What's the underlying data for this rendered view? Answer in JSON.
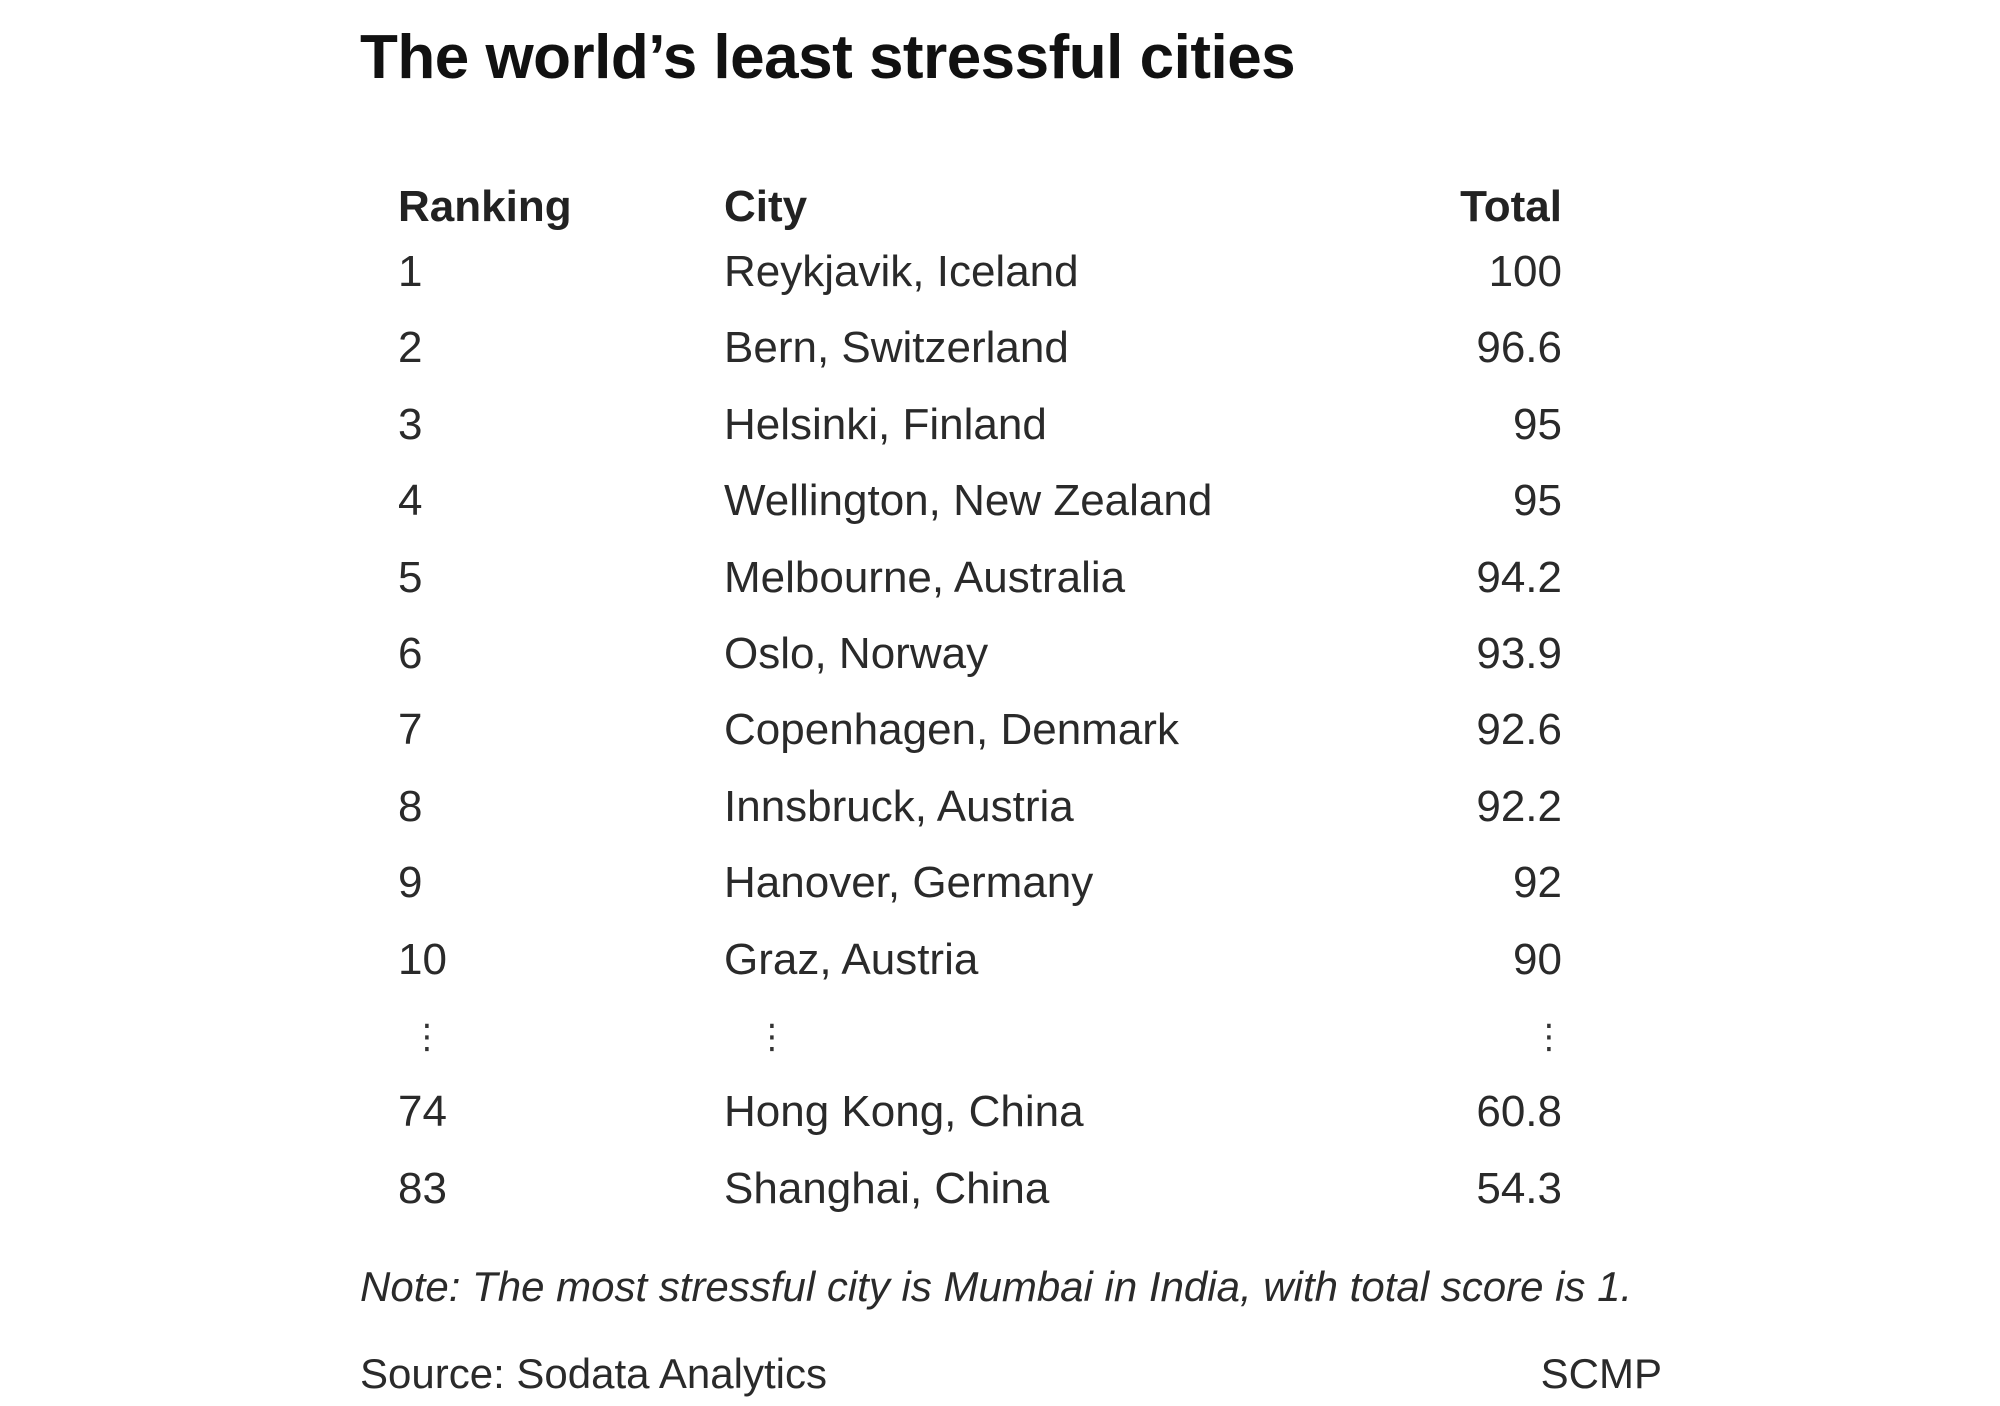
{
  "chart_data": {
    "type": "table",
    "title": "The world’s least stressful cities",
    "columns": [
      "Ranking",
      "City",
      "Total"
    ],
    "rows": [
      {
        "rank": "1",
        "city": "Reykjavik, Iceland",
        "total": "100"
      },
      {
        "rank": "2",
        "city": "Bern, Switzerland",
        "total": "96.6"
      },
      {
        "rank": "3",
        "city": "Helsinki, Finland",
        "total": "95"
      },
      {
        "rank": "4",
        "city": "Wellington, New Zealand",
        "total": "95"
      },
      {
        "rank": "5",
        "city": "Melbourne, Australia",
        "total": "94.2"
      },
      {
        "rank": "6",
        "city": "Oslo, Norway",
        "total": "93.9"
      },
      {
        "rank": "7",
        "city": "Copenhagen, Denmark",
        "total": "92.6"
      },
      {
        "rank": "8",
        "city": "Innsbruck, Austria",
        "total": "92.2"
      },
      {
        "rank": "9",
        "city": "Hanover, Germany",
        "total": "92"
      },
      {
        "rank": "10",
        "city": "Graz, Austria",
        "total": "90"
      }
    ],
    "ellipsis": "⋮",
    "tail_rows": [
      {
        "rank": "74",
        "city": "Hong Kong, China",
        "total": "60.8"
      },
      {
        "rank": "83",
        "city": "Shanghai, China",
        "total": "54.3"
      }
    ],
    "note": "Note: The most stressful city is Mumbai in India, with total score is 1.",
    "source": "Source: Sodata Analytics",
    "credit": "SCMP"
  }
}
